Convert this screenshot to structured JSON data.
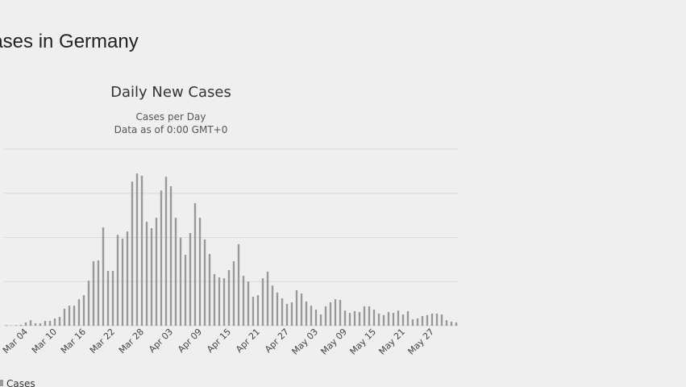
{
  "page_title": "Cases in Germany",
  "chart_data": {
    "type": "bar",
    "title": "Daily New Cases",
    "subtitle": [
      "Cases per Day",
      "Data as of 0:00 GMT+0"
    ],
    "categories": [
      null,
      null,
      null,
      null,
      "Mar 04",
      null,
      null,
      null,
      null,
      null,
      "Mar 10",
      null,
      null,
      null,
      null,
      null,
      "Mar 16",
      null,
      null,
      null,
      null,
      null,
      "Mar 22",
      null,
      null,
      null,
      null,
      null,
      "Mar 28",
      null,
      null,
      null,
      null,
      null,
      "Apr 03",
      null,
      null,
      null,
      null,
      null,
      "Apr 09",
      null,
      null,
      null,
      null,
      null,
      "Apr 15",
      null,
      null,
      null,
      null,
      null,
      "Apr 21",
      null,
      null,
      null,
      null,
      null,
      "Apr 27",
      null,
      null,
      null,
      null,
      null,
      "May 03",
      null,
      null,
      null,
      null,
      null,
      "May 09",
      null,
      null,
      null,
      null,
      null,
      "May 15",
      null,
      null,
      null,
      null,
      null,
      "May 21",
      null,
      null,
      null,
      null,
      null,
      "May 27",
      null,
      null,
      null,
      null,
      null
    ],
    "series": [
      {
        "name": "Cases",
        "color": "#999999",
        "values": [
          30,
          10,
          30,
          40,
          150,
          250,
          110,
          110,
          220,
          220,
          330,
          400,
          770,
          910,
          910,
          1200,
          1380,
          2040,
          2920,
          2960,
          4450,
          2480,
          2480,
          4120,
          3940,
          4270,
          6530,
          6900,
          6790,
          4710,
          4420,
          4890,
          6130,
          6750,
          6320,
          4890,
          3980,
          3210,
          4200,
          5550,
          4890,
          3910,
          3250,
          2340,
          2190,
          2150,
          2520,
          2920,
          3690,
          2260,
          2000,
          1310,
          1380,
          2150,
          2450,
          1820,
          1500,
          1240,
          990,
          1060,
          1610,
          1460,
          1100,
          910,
          730,
          510,
          880,
          1060,
          1200,
          1170,
          690,
          580,
          660,
          620,
          880,
          880,
          730,
          550,
          480,
          620,
          580,
          690,
          510,
          660,
          290,
          330,
          440,
          480,
          550,
          550,
          510,
          250,
          180,
          150
        ]
      }
    ],
    "ylim": [
      0,
      8000
    ],
    "yticks": [
      0,
      2000,
      4000,
      6000,
      8000
    ],
    "grid": true
  }
}
